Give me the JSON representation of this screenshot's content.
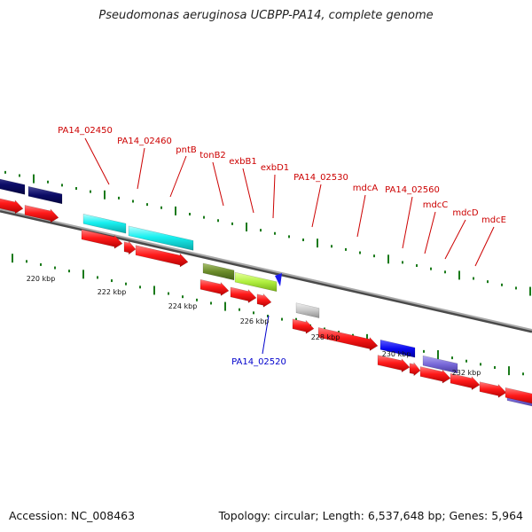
{
  "title": "Pseudomonas aeruginosa UCBPP-PA14, complete genome",
  "footer": {
    "accession": "Accession: NC_008463",
    "topology": "Topology: circular; Length: 6,537,648 bp; Genes: 5,964"
  },
  "colors": {
    "forward_cds": "#ff1a1a",
    "backbone": "#808080",
    "tick": "#1a7a1a",
    "gene_label": "#cc0000",
    "highlight_label": "#0000cc"
  },
  "scale": {
    "unit": "kbp",
    "labels": [
      "220 kbp",
      "222 kbp",
      "224 kbp",
      "226 kbp",
      "228 kbp",
      "230 kbp",
      "232 kbp"
    ]
  },
  "gene_labels": [
    "PA14_02450",
    "PA14_02460",
    "pntB",
    "tonB2",
    "exbB1",
    "exbD1",
    "PA14_02530",
    "mdcA",
    "PA14_02560",
    "mdcC",
    "mdcD",
    "mdcE"
  ],
  "highlight_gene": {
    "label": "PA14_02520"
  }
}
